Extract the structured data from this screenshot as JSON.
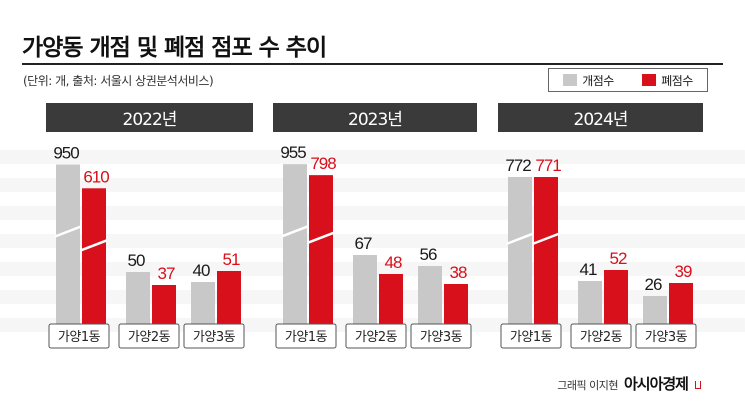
{
  "title": "가양동 개점 및 폐점 점포 수 추이",
  "subtitle": "(단위: 개, 출처: 서울시 상권분석서비스)",
  "legend": {
    "open_label": "개점수",
    "close_label": "폐점수"
  },
  "colors": {
    "open": "#c8c8c8",
    "close": "#d7101b",
    "open_text": "#1a1a1a",
    "close_text": "#d7101b",
    "header_bg": "#3a3a3a"
  },
  "credit": {
    "text": "그래픽 이지현",
    "logo": "아시아경제"
  },
  "chart_data": [
    {
      "type": "bar",
      "title": "2022년",
      "categories": [
        "가양1동",
        "가양2동",
        "가양3동"
      ],
      "series": [
        {
          "name": "개점수",
          "values": [
            950,
            50,
            40
          ]
        },
        {
          "name": "폐점수",
          "values": [
            610,
            37,
            51
          ]
        }
      ],
      "broken_axis": true
    },
    {
      "type": "bar",
      "title": "2023년",
      "categories": [
        "가양1동",
        "가양2동",
        "가양3동"
      ],
      "series": [
        {
          "name": "개점수",
          "values": [
            955,
            67,
            56
          ]
        },
        {
          "name": "폐점수",
          "values": [
            798,
            48,
            38
          ]
        }
      ],
      "broken_axis": true
    },
    {
      "type": "bar",
      "title": "2024년",
      "categories": [
        "가양1동",
        "가양2동",
        "가양3동"
      ],
      "series": [
        {
          "name": "개점수",
          "values": [
            772,
            41,
            26
          ]
        },
        {
          "name": "폐점수",
          "values": [
            771,
            52,
            39
          ]
        }
      ],
      "broken_axis": true
    }
  ]
}
